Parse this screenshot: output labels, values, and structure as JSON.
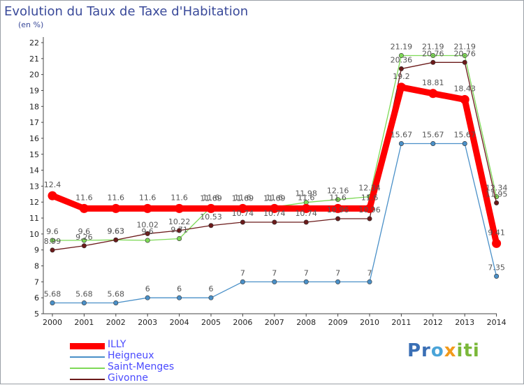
{
  "chart_data": {
    "type": "line",
    "title": "Evolution du Taux de Taxe d'Habitation",
    "subtitle": "(en %)",
    "x": [
      "2000",
      "2001",
      "2002",
      "2003",
      "2004",
      "2005",
      "2006",
      "2007",
      "2008",
      "2009",
      "2010",
      "2011",
      "2012",
      "2013",
      "2014"
    ],
    "ylim": [
      5,
      22
    ],
    "y_ticks": [
      5,
      6,
      7,
      8,
      9,
      10,
      11,
      12,
      13,
      14,
      15,
      16,
      17,
      18,
      19,
      20,
      21,
      22
    ],
    "grid": false,
    "legend_position": "bottom-left",
    "series": [
      {
        "name": "Heigneux",
        "color": "#4a90c8",
        "values": [
          5.68,
          5.68,
          5.68,
          6,
          6,
          6,
          7,
          7,
          7,
          7,
          7,
          15.67,
          15.67,
          15.67,
          7.35
        ],
        "labels": [
          "5.68",
          "5.68",
          "5.68",
          "6",
          "6",
          "6",
          "7",
          "7",
          "7",
          "7",
          "7",
          "15.67",
          "15.67",
          "15.67",
          "7.35"
        ]
      },
      {
        "name": "Saint-Menges",
        "color": "#7ed957",
        "values": [
          9.6,
          9.6,
          9.63,
          9.6,
          9.71,
          11.69,
          11.69,
          11.69,
          11.98,
          12.16,
          12.34,
          21.19,
          21.19,
          21.19,
          12.34
        ],
        "labels": [
          "9.6",
          "9.6",
          "9.63",
          "9.6",
          "9.71",
          "11.69",
          "11.69",
          "11.69",
          "11.98",
          "12.16",
          "12.34",
          "21.19",
          "21.19",
          "21.19",
          "12.34"
        ]
      },
      {
        "name": "Givonne",
        "color": "#6b1a1a",
        "values": [
          8.99,
          9.26,
          9.63,
          10.02,
          10.22,
          10.53,
          10.74,
          10.74,
          10.74,
          10.96,
          10.96,
          20.36,
          20.76,
          20.76,
          11.95
        ],
        "labels": [
          "8.99",
          "9.26",
          "9.63",
          "10.02",
          "10.22",
          "10.53",
          "10.74",
          "10.74",
          "10.74",
          "10.96",
          "10.96",
          "20.36",
          "20.76",
          "20.76",
          "11.95"
        ]
      },
      {
        "name": "ILLY",
        "color": "#ff0000",
        "values": [
          12.4,
          11.6,
          11.6,
          11.6,
          11.6,
          11.6,
          11.6,
          11.6,
          11.6,
          11.6,
          11.6,
          19.2,
          18.81,
          18.43,
          9.41
        ],
        "labels": [
          "12.4",
          "11.6",
          "11.6",
          "11.6",
          "11.6",
          "11.6",
          "11.6",
          "11.6",
          "11.6",
          "11.6",
          "11.6",
          "19.2",
          "18.81",
          "18.43",
          "9.41"
        ]
      }
    ],
    "legend_order": [
      "ILLY",
      "Heigneux",
      "Saint-Menges",
      "Givonne"
    ]
  },
  "logo": {
    "parts": [
      "Pr",
      "o",
      "x",
      "iti"
    ]
  }
}
